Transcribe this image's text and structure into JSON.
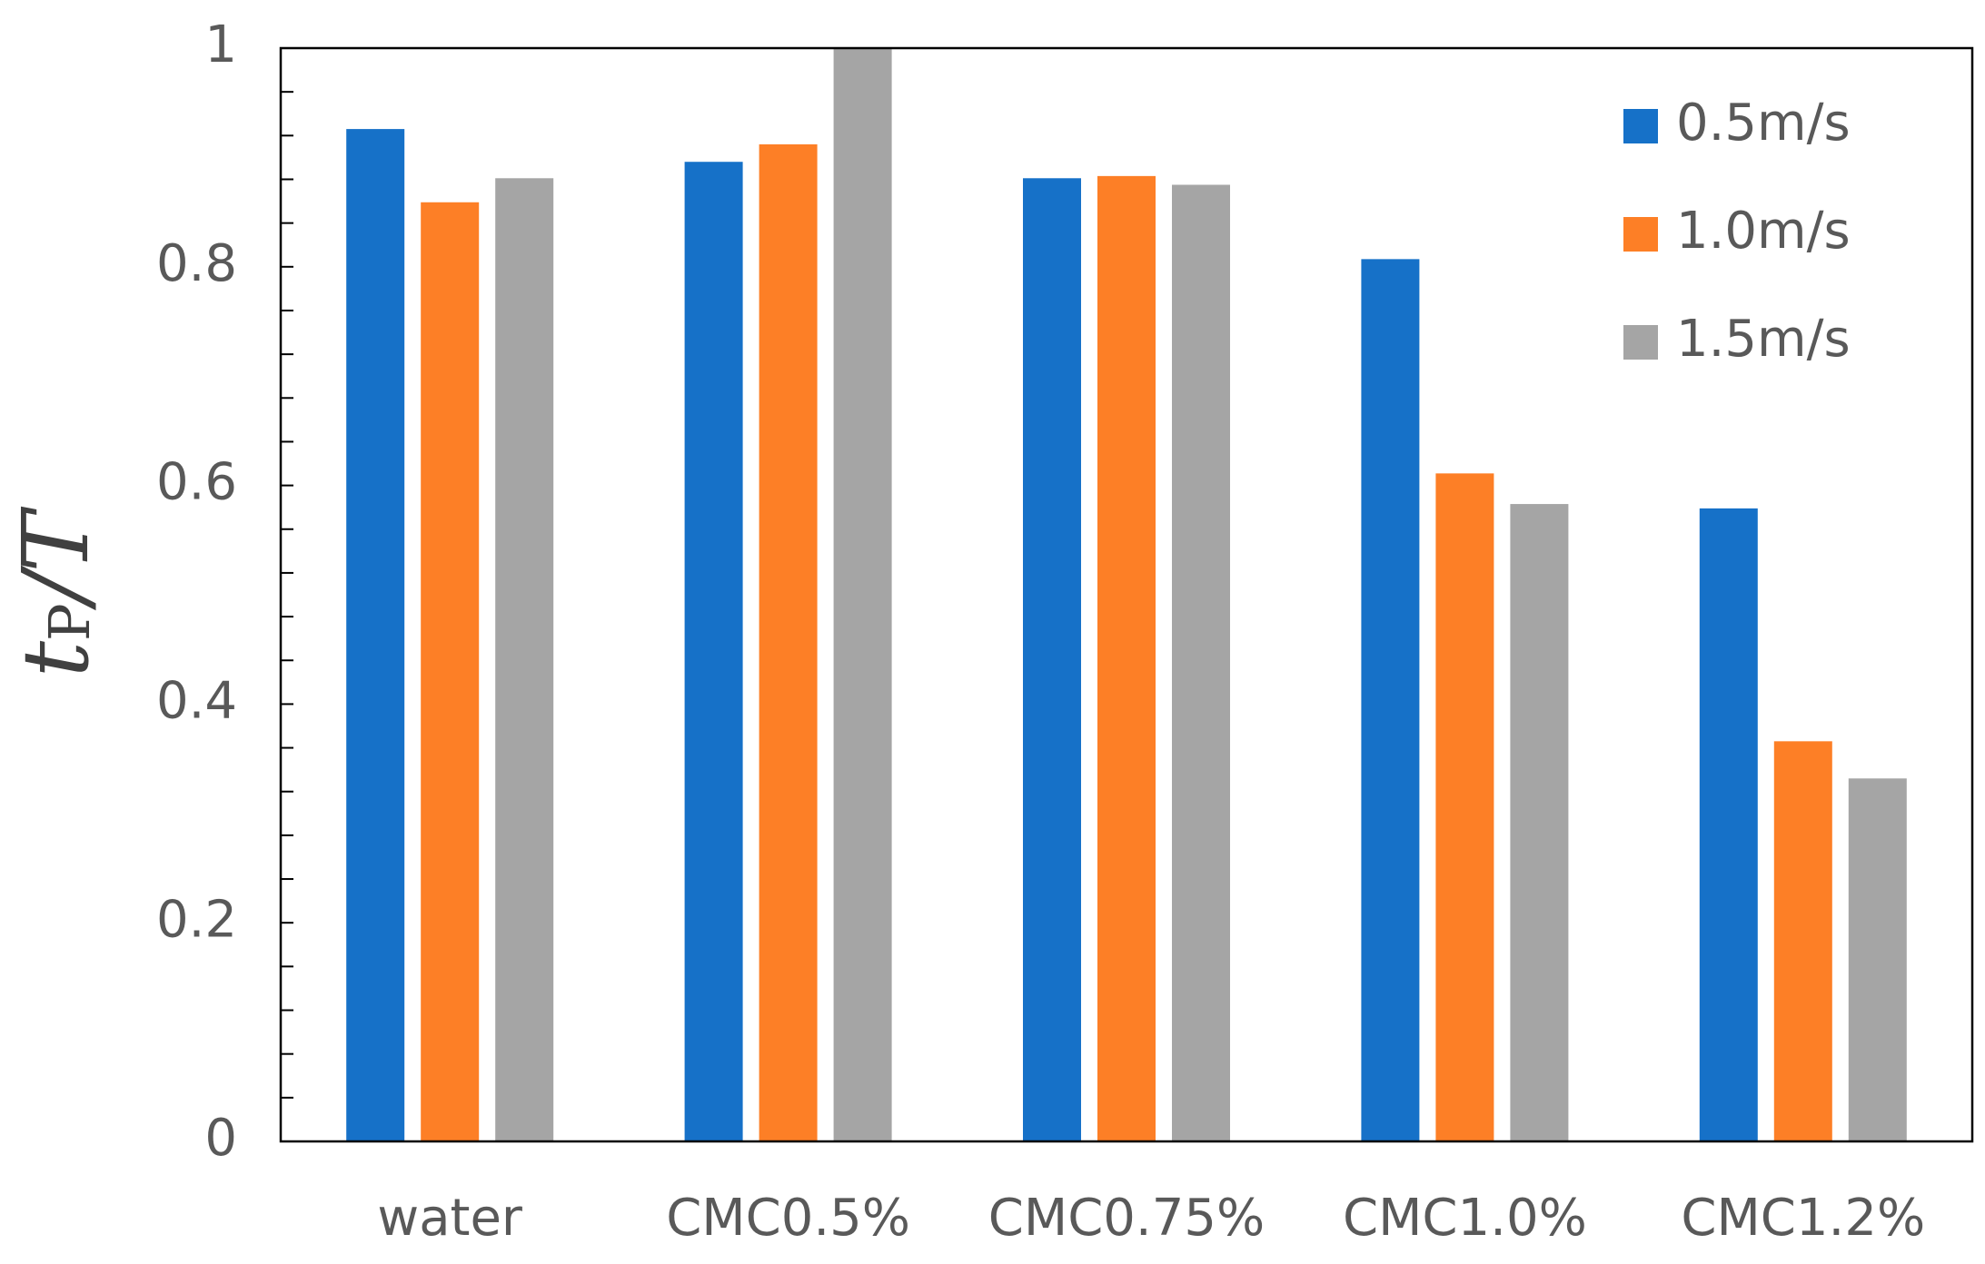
{
  "chart_data": {
    "type": "bar",
    "ylabel": [
      "t",
      "P",
      "/T"
    ],
    "categories": [
      "water",
      "CMC0.5%",
      "CMC0.75%",
      "CMC1.0%",
      "CMC1.2%"
    ],
    "series": [
      {
        "name": "0.5m/s",
        "color": "#1671c8",
        "values": [
          0.926,
          0.896,
          0.881,
          0.807,
          0.579
        ]
      },
      {
        "name": "1.0m/s",
        "color": "#fd7f26",
        "values": [
          0.859,
          0.912,
          0.883,
          0.611,
          0.366
        ]
      },
      {
        "name": "1.5m/s",
        "color": "#a5a5a5",
        "values": [
          0.881,
          1.0,
          0.875,
          0.583,
          0.332
        ]
      }
    ],
    "ylim": [
      0,
      1
    ],
    "yticks": [
      0,
      0.2,
      0.4,
      0.6,
      0.8,
      1
    ],
    "minor_yticks": [
      0.04,
      0.08,
      0.12,
      0.16,
      0.24,
      0.28,
      0.32,
      0.36,
      0.44,
      0.48,
      0.52,
      0.56,
      0.64,
      0.68,
      0.72,
      0.76,
      0.84,
      0.88,
      0.92,
      0.96
    ],
    "grid": false,
    "legend": "upper right"
  }
}
